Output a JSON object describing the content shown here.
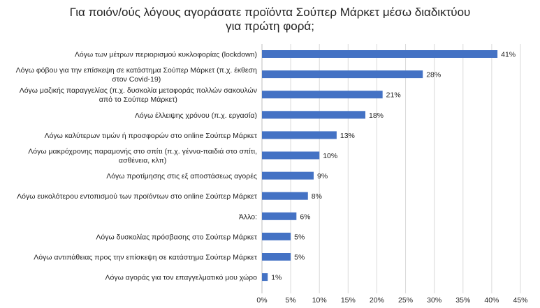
{
  "chart_data": {
    "type": "bar",
    "orientation": "horizontal",
    "title": "Για ποιόν/ούς λόγους αγοράσατε προϊόντα Σούπερ Μάρκετ μέσω διαδικτύου\nγια πρώτη φορά;",
    "categories": [
      "Λόγω των μέτρων περιορισμού κυκλοφορίας (lockdown)",
      "Λόγω φόβου για την επίσκεψη σε κατάστημα Σούπερ Μάρκετ (π.χ. έκθεση\nστον Covid-19)",
      "Λόγω μαζικής παραγγελίας (π.χ. δυσκολία μεταφοράς πολλών σακουλών\nαπό το Σούπερ Μάρκετ)",
      "Λόγω έλλειψης χρόνου (π.χ. εργασία)",
      "Λόγω καλύτερων τιμών ή προσφορών στο online Σούπερ Μάρκετ",
      "Λόγω μακρόχρονης παραμονής στο σπίτι (π.χ. γέννα-παιδιά στο σπίτι,\nασθένεια, κλπ)",
      "Λόγω προτίμησης στις εξ αποστάσεως αγορές",
      "Λόγω ευκολότερου εντοπισμού των προϊόντων στο online Σούπερ Μάρκετ",
      "Άλλο:",
      "Λόγω δυσκολίας πρόσβασης στο Σούπερ Μάρκετ",
      "Λόγω αντιπάθειας προς την επίσκεψη σε κατάστημα Σούπερ Μάρκετ",
      "Λόγω αγοράς για τον επαγγελματικό μου χώρο"
    ],
    "values": [
      41,
      28,
      21,
      18,
      13,
      10,
      9,
      8,
      6,
      5,
      5,
      1
    ],
    "value_labels": [
      "41%",
      "28%",
      "21%",
      "18%",
      "13%",
      "10%",
      "9%",
      "8%",
      "6%",
      "5%",
      "5%",
      "1%"
    ],
    "xlim": [
      0,
      45
    ],
    "xticks": [
      0,
      5,
      10,
      15,
      20,
      25,
      30,
      35,
      40,
      45
    ],
    "xtick_labels": [
      "0%",
      "5%",
      "10%",
      "15%",
      "20%",
      "25%",
      "30%",
      "35%",
      "40%",
      "45%"
    ],
    "grid": true,
    "legend": "none",
    "bar_color": "#4472c4",
    "grid_color": "#d9d9d9"
  }
}
